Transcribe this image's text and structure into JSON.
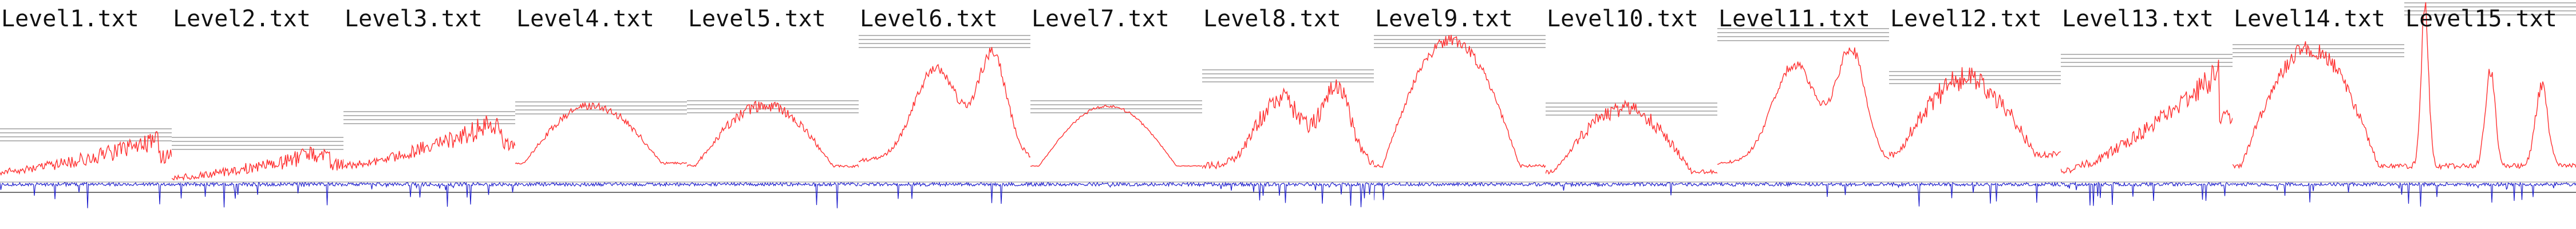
{
  "files": [
    {
      "name": "Level1.txt"
    },
    {
      "name": "Level2.txt"
    },
    {
      "name": "Level3.txt"
    },
    {
      "name": "Level4.txt"
    },
    {
      "name": "Level5.txt"
    },
    {
      "name": "Level6.txt"
    },
    {
      "name": "Level7.txt"
    },
    {
      "name": "Level8.txt"
    },
    {
      "name": "Level9.txt"
    },
    {
      "name": "Level10.txt"
    },
    {
      "name": "Level11.txt"
    },
    {
      "name": "Level12.txt"
    },
    {
      "name": "Level13.txt"
    },
    {
      "name": "Level14.txt"
    },
    {
      "name": "Level15.txt"
    }
  ],
  "colors": {
    "upper_trace": "#ff3030",
    "lower_trace": "#2020cc",
    "reference_lines": "#8a8a8a",
    "label": "#111111",
    "background": "#ffffff"
  }
}
